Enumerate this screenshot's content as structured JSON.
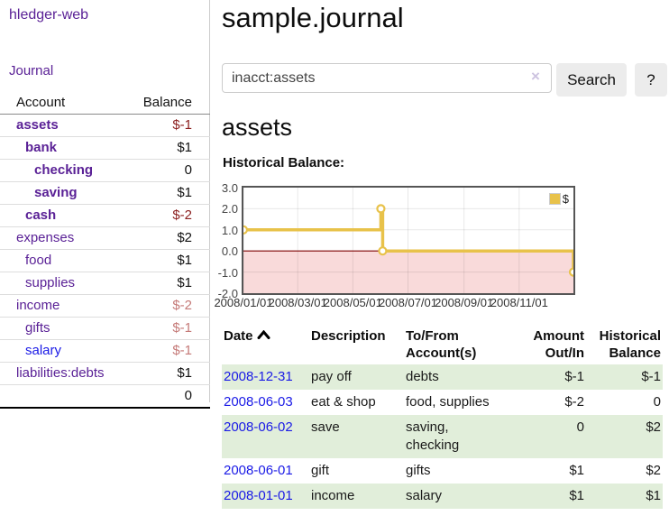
{
  "app": {
    "brand": "hledger-web"
  },
  "sidebar": {
    "nav_journal": "Journal",
    "accounts": {
      "col_account": "Account",
      "col_balance": "Balance",
      "rows": [
        {
          "name": "assets",
          "balance": "$-1"
        },
        {
          "name": "bank",
          "balance": "$1"
        },
        {
          "name": "checking",
          "balance": "0"
        },
        {
          "name": "saving",
          "balance": "$1"
        },
        {
          "name": "cash",
          "balance": "$-2"
        },
        {
          "name": "expenses",
          "balance": "$2"
        },
        {
          "name": "food",
          "balance": "$1"
        },
        {
          "name": "supplies",
          "balance": "$1"
        },
        {
          "name": "income",
          "balance": "$-2"
        },
        {
          "name": "gifts",
          "balance": "$-1"
        },
        {
          "name": "salary",
          "balance": "$-1"
        },
        {
          "name": "liabilities:debts",
          "balance": "$1"
        }
      ],
      "total": "0"
    }
  },
  "header": {
    "title": "sample.journal"
  },
  "search": {
    "value": "inacct:assets",
    "clear_icon": "×",
    "search_button": "Search",
    "help_button": "?"
  },
  "account_page": {
    "heading": "assets",
    "chart_title": "Historical Balance:"
  },
  "chart_data": {
    "type": "line",
    "step": true,
    "title": "Historical Balance:",
    "legend_label": "$",
    "legend_position": "top-right",
    "ylim": [
      -2,
      3
    ],
    "yticks": [
      3,
      2,
      1,
      0,
      -1,
      -2
    ],
    "xticks": [
      "2008/01/01",
      "2008/03/01",
      "2008/05/01",
      "2008/07/01",
      "2008/09/01",
      "2008/11/01"
    ],
    "x_range": [
      "2008/01/01",
      "2008/12/31"
    ],
    "series": [
      {
        "name": "$",
        "color": "#e8c24a",
        "points": [
          {
            "date": "2008/01/01",
            "value": 1
          },
          {
            "date": "2008/06/01",
            "value": 2
          },
          {
            "date": "2008/06/03",
            "value": 0
          },
          {
            "date": "2008/12/31",
            "value": -1
          }
        ]
      }
    ],
    "negative_fill": "#f9dada",
    "zero_line_color": "#7d0000",
    "grid": true
  },
  "register": {
    "headers": {
      "date": "Date",
      "description": "Description",
      "accounts": "To/From Account(s)",
      "amount": "Amount Out/In",
      "balance": "Historical Balance"
    },
    "rows": [
      {
        "date": "2008-12-31",
        "description": "pay off",
        "accounts": "debts",
        "amount": "$-1",
        "balance": "$-1"
      },
      {
        "date": "2008-06-03",
        "description": "eat & shop",
        "accounts": "food, supplies",
        "amount": "$-2",
        "balance": "0"
      },
      {
        "date": "2008-06-02",
        "description": "save",
        "accounts": "saving, checking",
        "amount": "0",
        "balance": "$2"
      },
      {
        "date": "2008-06-01",
        "description": "gift",
        "accounts": "gifts",
        "amount": "$1",
        "balance": "$2"
      },
      {
        "date": "2008-01-01",
        "description": "income",
        "accounts": "salary",
        "amount": "$1",
        "balance": "$1"
      }
    ]
  },
  "colors": {
    "link_purple": "#5a2196",
    "link_blue": "#1a1ae6",
    "negative_strong": "#8b1e1e",
    "negative_soft": "#c57a78",
    "row_stripe_green": "#e1eeda",
    "chart_line_gold": "#e8c24a",
    "chart_negative_fill": "#f9dada",
    "chart_zero_line": "#7d0000"
  }
}
